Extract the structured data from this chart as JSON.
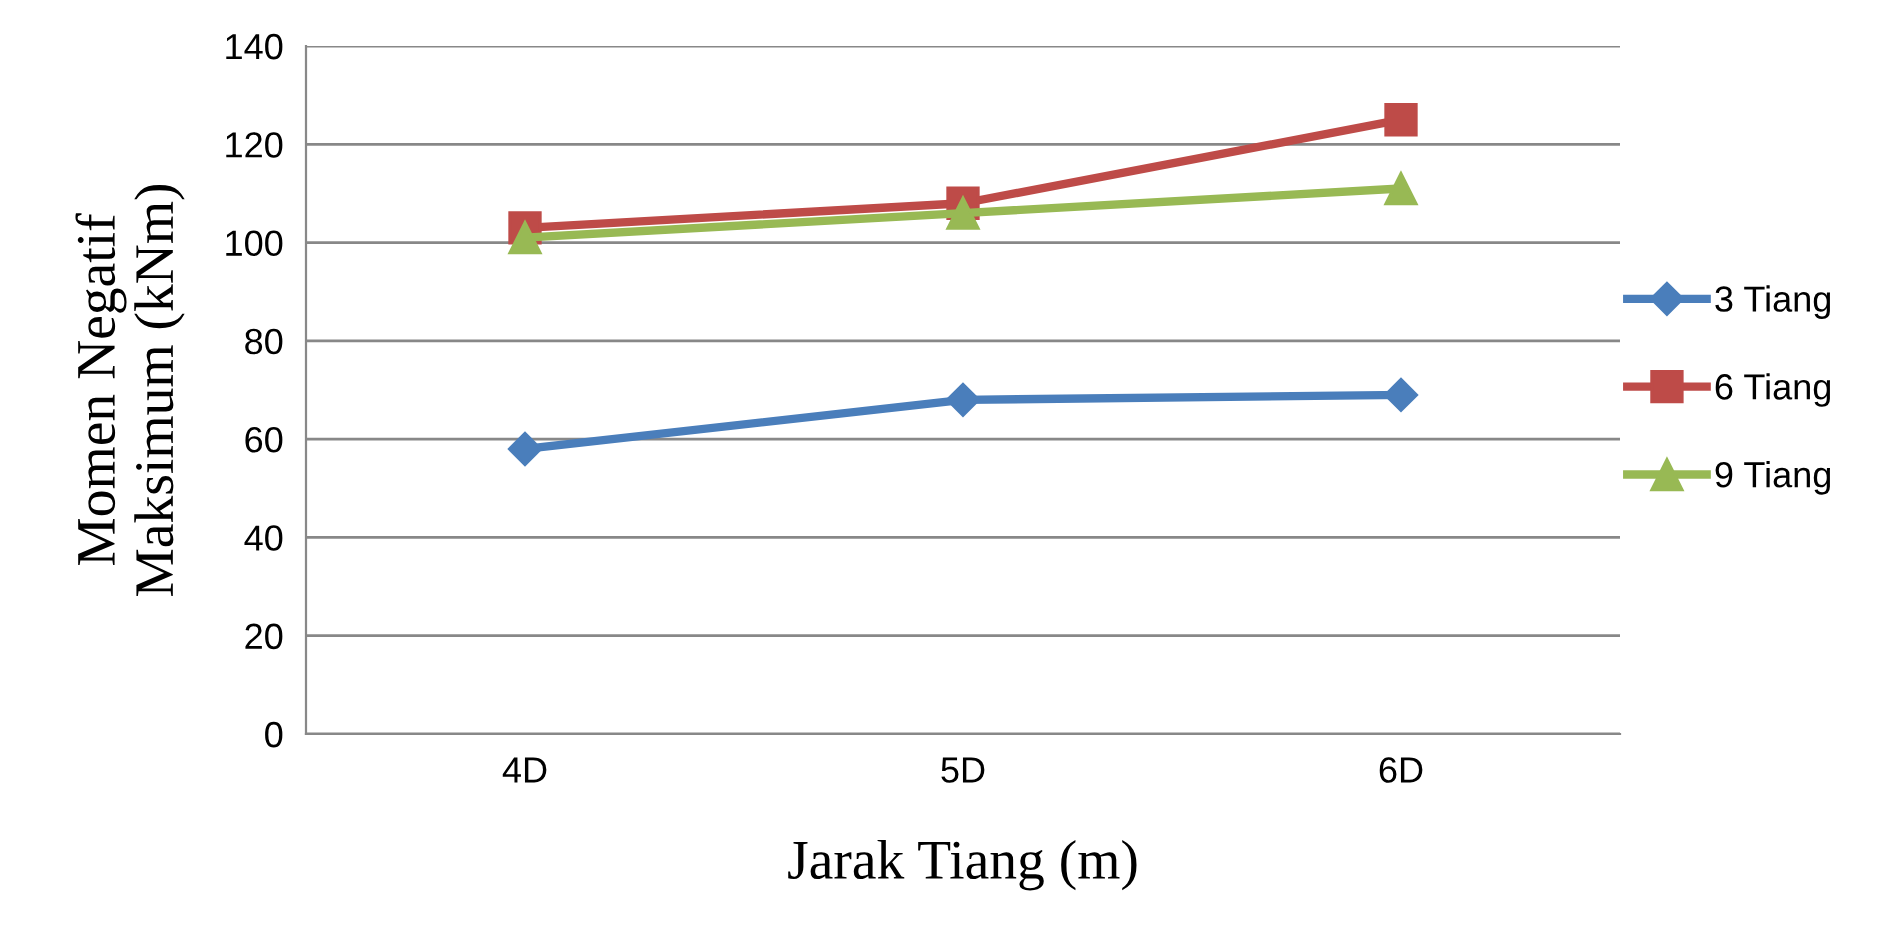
{
  "chart_data": {
    "type": "line",
    "xlabel": "Jarak Tiang (m)",
    "ylabel": "Momen Negatif\nMaksimum (kNm)",
    "categories": [
      "4D",
      "5D",
      "6D"
    ],
    "series": [
      {
        "name": "3 Tiang",
        "color": "#4a7ebb",
        "marker": "diamond",
        "values": [
          58,
          68,
          69
        ]
      },
      {
        "name": "6 Tiang",
        "color": "#be4b48",
        "marker": "square",
        "values": [
          103,
          108,
          125
        ]
      },
      {
        "name": "9 Tiang",
        "color": "#98b954",
        "marker": "triangle",
        "values": [
          101,
          106,
          111
        ]
      }
    ],
    "ylim": [
      0,
      140
    ],
    "yticks": [
      0,
      20,
      40,
      60,
      80,
      100,
      120,
      140
    ],
    "grid": "y",
    "legend": "right",
    "line_style": "solid"
  }
}
